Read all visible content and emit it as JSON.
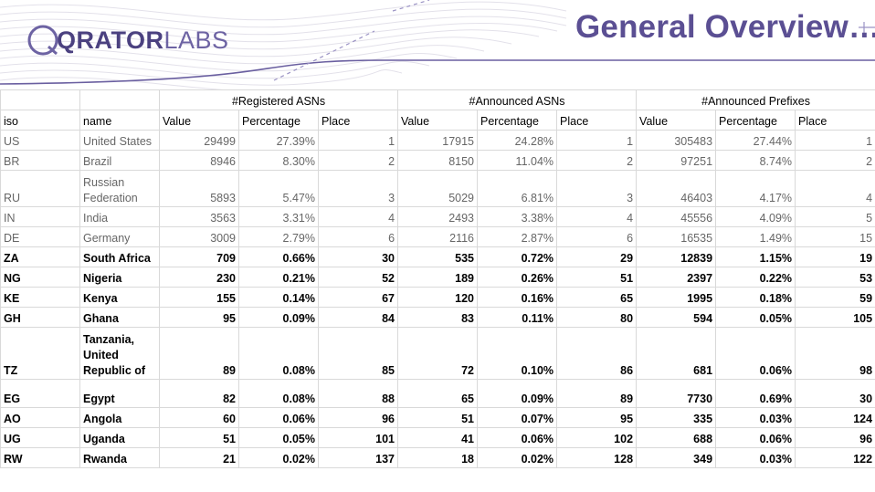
{
  "header": {
    "logo_bold": "QRATOR",
    "logo_light": "LABS",
    "title": "General Overview…"
  },
  "table": {
    "groups": [
      "#Registered ASNs",
      "#Announced ASNs",
      "#Announced Prefixes"
    ],
    "columns": [
      "iso",
      "name",
      "Value",
      "Percentage",
      "Place",
      "Value",
      "Percentage",
      "Place",
      "Value",
      "Percentage",
      "Place"
    ],
    "rows": [
      {
        "style": "grey",
        "iso": "US",
        "name": "United States",
        "cells": [
          "29499",
          "27.39%",
          "1",
          "17915",
          "24.28%",
          "1",
          "305483",
          "27.44%",
          "1"
        ]
      },
      {
        "style": "grey",
        "iso": "BR",
        "name": "Brazil",
        "cells": [
          "8946",
          "8.30%",
          "2",
          "8150",
          "11.04%",
          "2",
          "97251",
          "8.74%",
          "2"
        ]
      },
      {
        "style": "grey",
        "iso": "RU",
        "name": "Russian Federation",
        "cells": [
          "5893",
          "5.47%",
          "3",
          "5029",
          "6.81%",
          "3",
          "46403",
          "4.17%",
          "4"
        ]
      },
      {
        "style": "grey",
        "iso": "IN",
        "name": "India",
        "cells": [
          "3563",
          "3.31%",
          "4",
          "2493",
          "3.38%",
          "4",
          "45556",
          "4.09%",
          "5"
        ]
      },
      {
        "style": "grey",
        "iso": "DE",
        "name": "Germany",
        "cells": [
          "3009",
          "2.79%",
          "6",
          "2116",
          "2.87%",
          "6",
          "16535",
          "1.49%",
          "15"
        ]
      },
      {
        "style": "bold",
        "iso": "ZA",
        "name": "South Africa",
        "cells": [
          "709",
          "0.66%",
          "30",
          "535",
          "0.72%",
          "29",
          "12839",
          "1.15%",
          "19"
        ]
      },
      {
        "style": "bold",
        "iso": "NG",
        "name": "Nigeria",
        "cells": [
          "230",
          "0.21%",
          "52",
          "189",
          "0.26%",
          "51",
          "2397",
          "0.22%",
          "53"
        ]
      },
      {
        "style": "bold",
        "iso": "KE",
        "name": "Kenya",
        "cells": [
          "155",
          "0.14%",
          "67",
          "120",
          "0.16%",
          "65",
          "1995",
          "0.18%",
          "59"
        ]
      },
      {
        "style": "bold",
        "iso": "GH",
        "name": "Ghana",
        "cells": [
          "95",
          "0.09%",
          "84",
          "83",
          "0.11%",
          "80",
          "594",
          "0.05%",
          "105"
        ]
      },
      {
        "style": "bold",
        "iso": "TZ",
        "name": "Tanzania, United Republic of",
        "cells": [
          "89",
          "0.08%",
          "85",
          "72",
          "0.10%",
          "86",
          "681",
          "0.06%",
          "98"
        ]
      },
      {
        "style": "bold",
        "iso": "EG",
        "name": "Egypt",
        "cells": [
          "82",
          "0.08%",
          "88",
          "65",
          "0.09%",
          "89",
          "7730",
          "0.69%",
          "30"
        ]
      },
      {
        "style": "bold",
        "iso": "AO",
        "name": "Angola",
        "cells": [
          "60",
          "0.06%",
          "96",
          "51",
          "0.07%",
          "95",
          "335",
          "0.03%",
          "124"
        ]
      },
      {
        "style": "bold",
        "iso": "UG",
        "name": "Uganda",
        "cells": [
          "51",
          "0.05%",
          "101",
          "41",
          "0.06%",
          "102",
          "688",
          "0.06%",
          "96"
        ]
      },
      {
        "style": "bold",
        "iso": "RW",
        "name": "Rwanda",
        "cells": [
          "21",
          "0.02%",
          "137",
          "18",
          "0.02%",
          "128",
          "349",
          "0.03%",
          "122"
        ]
      }
    ]
  }
}
